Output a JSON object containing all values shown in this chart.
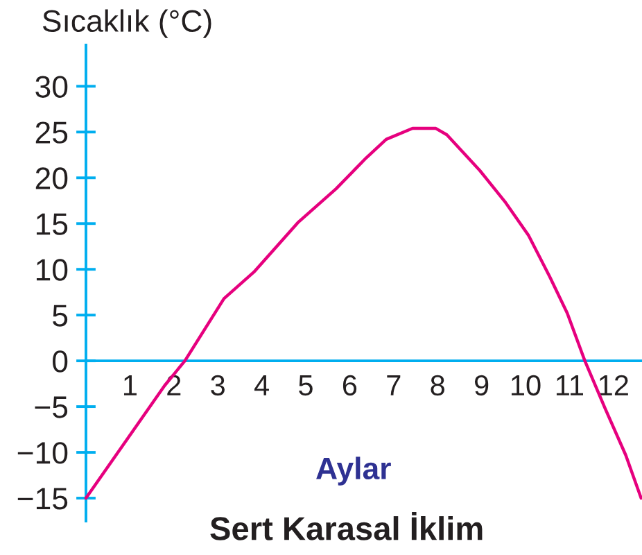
{
  "chart_data": {
    "type": "line",
    "title": "Sert Karasal İklim",
    "xlabel": "Aylar",
    "ylabel": "Sıcaklık (°C)",
    "x": [
      0,
      1.79,
      2.25,
      3.14,
      3.82,
      4.82,
      5.69,
      6.38,
      6.83,
      7.43,
      7.96,
      8.21,
      8.96,
      9.53,
      10.07,
      10.55,
      10.95,
      11.35,
      11.81,
      12.28,
      12.63
    ],
    "series": [
      {
        "color": "#e6007e",
        "values": [
          -15,
          -2.7,
          0,
          6.8,
          9.7,
          15.1,
          18.8,
          22.2,
          24.2,
          25.4,
          25.4,
          24.7,
          20.8,
          17.4,
          13.7,
          9.2,
          5.2,
          0,
          -5.2,
          -10.3,
          -15
        ]
      }
    ],
    "xlim": [
      0,
      12.65
    ],
    "ylim": [
      -17.5,
      34.5
    ],
    "xticks": [
      1,
      2,
      3,
      4,
      5,
      6,
      7,
      8,
      9,
      10,
      11,
      12
    ],
    "yticks": [
      -15,
      -10,
      -5,
      0,
      5,
      10,
      15,
      20,
      25,
      30
    ],
    "line_style": "solid"
  }
}
